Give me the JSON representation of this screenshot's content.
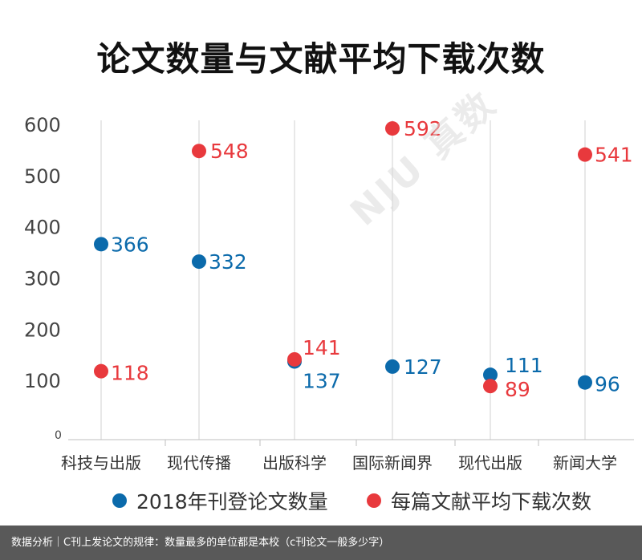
{
  "title": "论文数量与文献平均下载次数",
  "watermark": "NJU 真数",
  "colors": {
    "series_blue": "#0b6aab",
    "series_red": "#e8393d",
    "axis_text": "#333333",
    "grid": "#d0d0d0"
  },
  "chart_data": {
    "type": "scatter",
    "title": "论文数量与文献平均下载次数",
    "categories": [
      "科技与出版",
      "现代传播",
      "出版科学",
      "国际新闻界",
      "现代出版",
      "新闻大学"
    ],
    "ylim": [
      0,
      600
    ],
    "y_ticks": [
      "0",
      "100",
      "200",
      "300",
      "400",
      "500",
      "600"
    ],
    "grid": "vertical-only",
    "legend_position": "bottom",
    "series": [
      {
        "name": "2018年刊登论文数量",
        "color": "#0b6aab",
        "values": [
          366,
          332,
          137,
          127,
          111,
          96
        ]
      },
      {
        "name": "每篇文献平均下载次数",
        "color": "#e8393d",
        "values": [
          118,
          548,
          141,
          592,
          89,
          541
        ]
      }
    ]
  },
  "legend": {
    "blue_label": "2018年刊登论文数量",
    "red_label": "每篇文献平均下载次数"
  },
  "footer": {
    "text": "数据分析｜C刊上发论文的规律：数量最多的单位都是本校（c刊论文一般多少字）"
  }
}
